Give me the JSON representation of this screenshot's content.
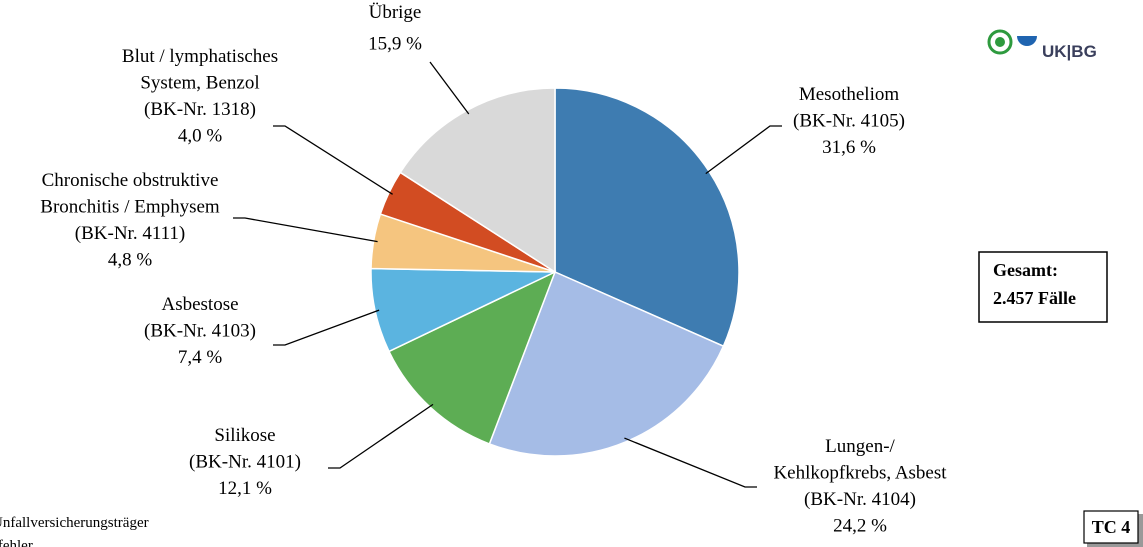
{
  "chart_data": {
    "type": "pie",
    "categories": [
      [
        "Mesotheliom",
        "(BK-Nr. 4105)"
      ],
      [
        "Lungen-/",
        "Kehlkopfkrebs, Asbest",
        "(BK-Nr. 4104)"
      ],
      [
        "Silikose",
        "(BK-Nr. 4101)"
      ],
      [
        "Asbestose",
        "(BK-Nr. 4103)"
      ],
      [
        "Chronische obstruktive",
        "Bronchitis / Emphysem",
        "(BK-Nr. 4111)"
      ],
      [
        "Blut / lymphatisches",
        "System, Benzol",
        "(BK-Nr. 1318)"
      ],
      [
        "Übrige"
      ]
    ],
    "values": [
      31.6,
      24.2,
      12.1,
      7.4,
      4.8,
      4.0,
      15.9
    ],
    "value_labels": [
      "31,6 %",
      "24,2 %",
      "12,1 %",
      "7,4 %",
      "4,8 %",
      "4,0 %",
      "15,9 %"
    ],
    "colors": [
      "#3e7cb1",
      "#a5bce6",
      "#5dad54",
      "#5bb4e0",
      "#f5c57f",
      "#d24c22",
      "#d9d9d9"
    ],
    "total_box": [
      "Gesamt:",
      "2.457 Fälle"
    ],
    "logo": "UK|BG",
    "footnote": [
      "Unfallversicherungsträger",
      "sfehler"
    ],
    "badge": "TC 4"
  }
}
